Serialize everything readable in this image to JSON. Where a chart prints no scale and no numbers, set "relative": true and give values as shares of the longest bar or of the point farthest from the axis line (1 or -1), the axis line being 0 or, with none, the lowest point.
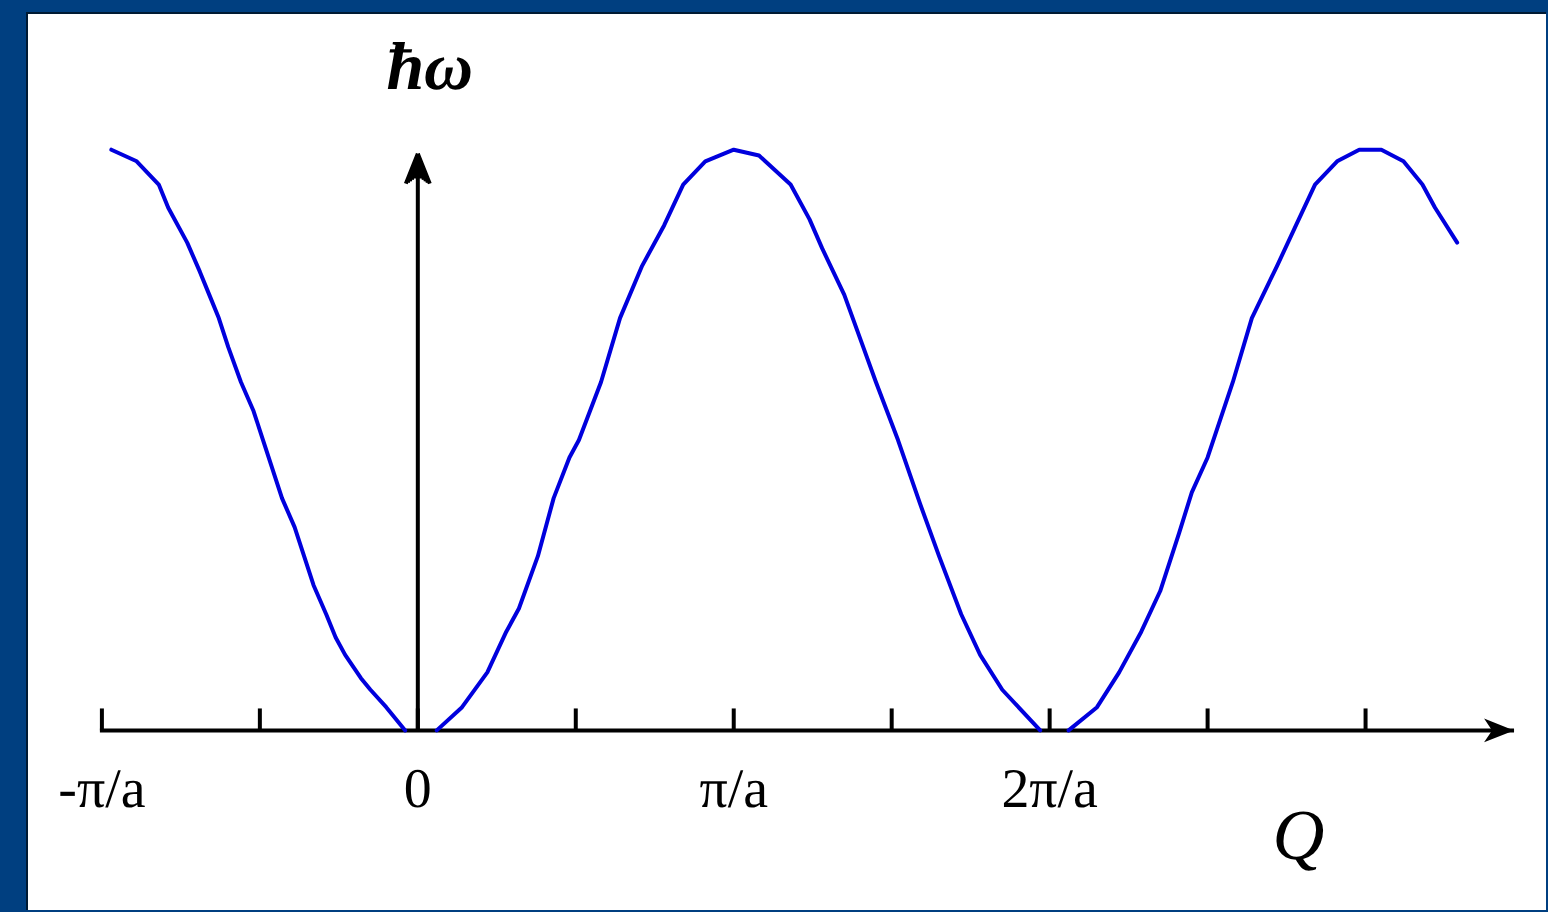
{
  "chart_data": {
    "type": "line",
    "xlabel": "Q",
    "ylabel": "ħω",
    "relative": true,
    "xlim": [
      -1,
      3.47
    ],
    "xticks": [
      {
        "value": -1,
        "label": "-π/a"
      },
      {
        "value": -0.5,
        "label": null
      },
      0,
      {
        "value": 0.5,
        "label": null
      },
      {
        "value": 1,
        "label": "π/a"
      },
      {
        "value": 1.5,
        "label": null
      },
      {
        "value": 2,
        "label": "2π/a"
      },
      {
        "value": 2.5,
        "label": null
      },
      {
        "value": 3,
        "label": null
      }
    ],
    "color": "#0000dd",
    "x": [
      -0.97,
      -0.89,
      -0.82,
      -0.79,
      -0.73,
      -0.69,
      -0.66,
      -0.63,
      -0.6,
      -0.56,
      -0.52,
      -0.49,
      -0.43,
      -0.39,
      -0.36,
      -0.33,
      -0.29,
      -0.26,
      -0.23,
      -0.18,
      -0.15,
      -0.1,
      -0.04,
      0,
      0.06,
      0.14,
      0.22,
      0.28,
      0.32,
      0.38,
      0.43,
      0.48,
      0.51,
      0.58,
      0.64,
      0.71,
      0.78,
      0.84,
      0.91,
      1,
      1.08,
      1.18,
      1.24,
      1.28,
      1.35,
      1.41,
      1.45,
      1.52,
      1.59,
      1.65,
      1.72,
      1.78,
      1.85,
      1.97,
      2,
      2.06,
      2.15,
      2.22,
      2.29,
      2.35,
      2.41,
      2.45,
      2.5,
      2.58,
      2.64,
      2.72,
      2.78,
      2.84,
      2.91,
      2.98,
      3.05,
      3.12,
      3.18,
      3.22,
      3.29
    ],
    "values": [
      1,
      0.98,
      0.94,
      0.9,
      0.84,
      0.79,
      0.75,
      0.71,
      0.66,
      0.6,
      0.55,
      0.5,
      0.4,
      0.35,
      0.3,
      0.25,
      0.2,
      0.16,
      0.13,
      0.09,
      0.07,
      0.04,
      0,
      null,
      0,
      0.04,
      0.1,
      0.17,
      0.21,
      0.3,
      0.4,
      0.47,
      0.5,
      0.6,
      0.71,
      0.8,
      0.87,
      0.94,
      0.98,
      1,
      0.99,
      0.94,
      0.88,
      0.83,
      0.75,
      0.66,
      0.6,
      0.5,
      0.39,
      0.3,
      0.2,
      0.13,
      0.07,
      0,
      null,
      0,
      0.04,
      0.1,
      0.17,
      0.24,
      0.34,
      0.41,
      0.47,
      0.6,
      0.71,
      0.8,
      0.87,
      0.94,
      0.98,
      1,
      1,
      0.98,
      0.94,
      0.9,
      0.84
    ]
  }
}
